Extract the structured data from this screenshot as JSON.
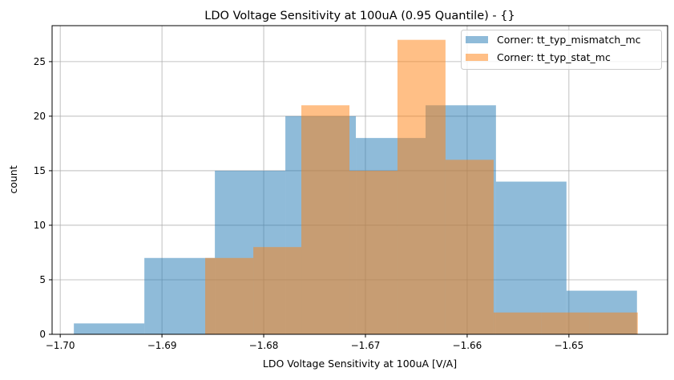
{
  "chart_data": {
    "type": "histogram",
    "title": "LDO Voltage Sensitivity at 100uA (0.95 Quantile) - {}",
    "xlabel": "LDO Voltage Sensitivity at 100uA [V/A]",
    "ylabel": "count",
    "xlim": [
      -1.7008,
      -1.6403
    ],
    "ylim": [
      0,
      28.3
    ],
    "xticks": [
      -1.7,
      -1.69,
      -1.68,
      -1.67,
      -1.66,
      -1.65
    ],
    "xtick_labels": [
      "−1.70",
      "−1.69",
      "−1.68",
      "−1.67",
      "−1.66",
      "−1.65"
    ],
    "yticks": [
      0,
      5,
      10,
      15,
      20,
      25
    ],
    "ytick_labels": [
      "0",
      "5",
      "10",
      "15",
      "20",
      "25"
    ],
    "grid": true,
    "legend_position": "top-right",
    "series": [
      {
        "name": "Corner: tt_typ_mismatch_mc",
        "color": "#1f77b4",
        "alpha": 0.5,
        "bin_edges": [
          -1.69866,
          -1.69173,
          -1.6848,
          -1.67787,
          -1.67094,
          -1.66409,
          -1.65717,
          -1.65024,
          -1.64331
        ],
        "counts": [
          1,
          7,
          15,
          20,
          18,
          21,
          14,
          4
        ]
      },
      {
        "name": "Corner: tt_typ_stat_mc",
        "color": "#ff7f0e",
        "alpha": 0.5,
        "bin_edges": [
          -1.68575,
          -1.68102,
          -1.6763,
          -1.67157,
          -1.66685,
          -1.66213,
          -1.6574,
          -1.65268,
          -1.64795,
          -1.64323
        ],
        "counts": [
          7,
          8,
          21,
          15,
          27,
          16,
          2,
          2,
          2
        ]
      }
    ]
  }
}
